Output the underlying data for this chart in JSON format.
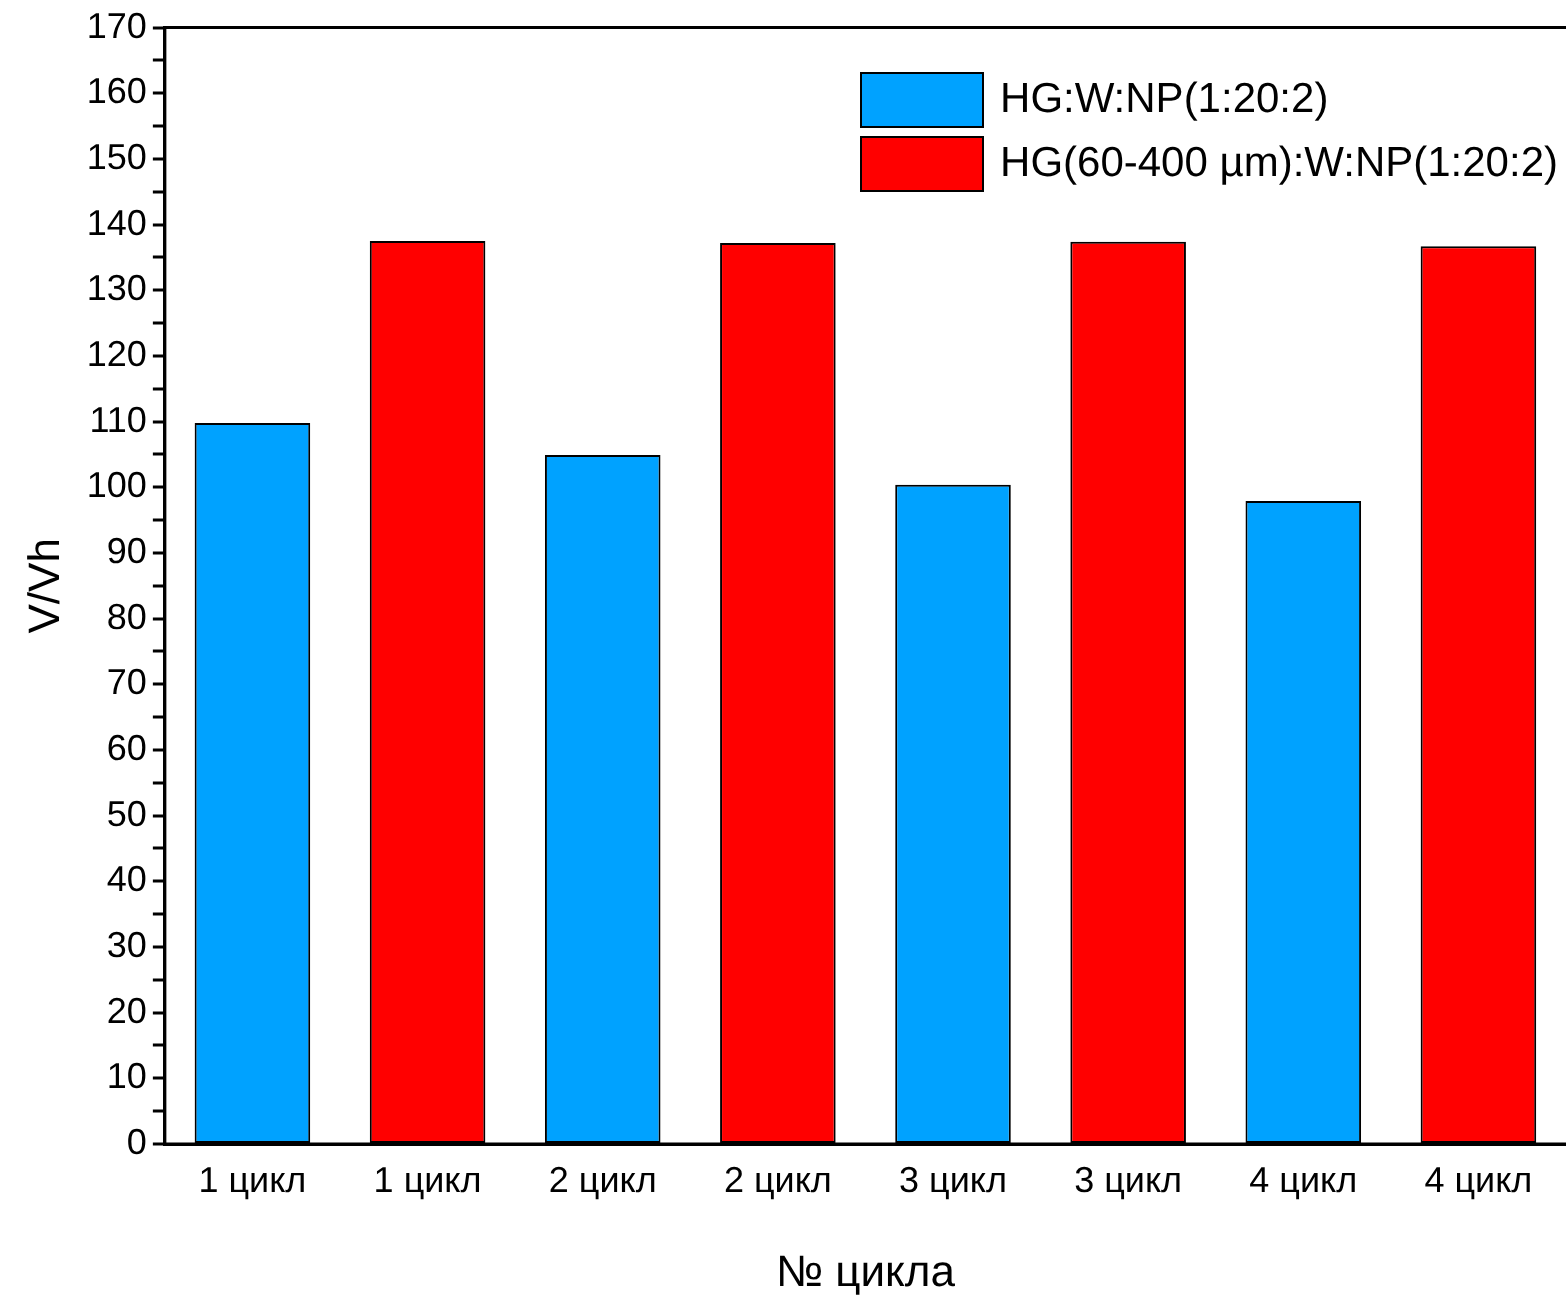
{
  "chart_data": {
    "type": "bar",
    "xlabel": "№ цикла",
    "ylabel": "V/Vh",
    "categories": [
      "1 цикл",
      "1 цикл",
      "2 цикл",
      "2 цикл",
      "3 цикл",
      "3 цикл",
      "4 цикл",
      "4 цикл"
    ],
    "series": [
      {
        "name": "HG:W:NP(1:20:2)",
        "color": "#00a2ff",
        "values": [
          109.8,
          null,
          104.9,
          null,
          100.4,
          null,
          97.9,
          null
        ]
      },
      {
        "name": "HG(60-400 µm):W:NP(1:20:2)",
        "color": "#ff0000",
        "values": [
          null,
          137.5,
          null,
          137.2,
          null,
          137.4,
          null,
          136.7
        ]
      }
    ],
    "ylim": [
      0,
      170
    ],
    "yticks": [
      0,
      {
        "value": 5,
        "label": null
      },
      10,
      {
        "value": 15,
        "label": null
      },
      20,
      {
        "value": 25,
        "label": null
      },
      30,
      {
        "value": 35,
        "label": null
      },
      40,
      {
        "value": 45,
        "label": null
      },
      50,
      {
        "value": 55,
        "label": null
      },
      60,
      {
        "value": 65,
        "label": null
      },
      70,
      {
        "value": 75,
        "label": null
      },
      80,
      {
        "value": 85,
        "label": null
      },
      90,
      {
        "value": 95,
        "label": null
      },
      100,
      {
        "value": 105,
        "label": null
      },
      110,
      {
        "value": 115,
        "label": null
      },
      120,
      {
        "value": 125,
        "label": null
      },
      130,
      {
        "value": 135,
        "label": null
      },
      140,
      {
        "value": 145,
        "label": null
      },
      150,
      {
        "value": 155,
        "label": null
      },
      160,
      {
        "value": 165,
        "label": null
      },
      170
    ],
    "legend": "top right",
    "grid": false
  }
}
